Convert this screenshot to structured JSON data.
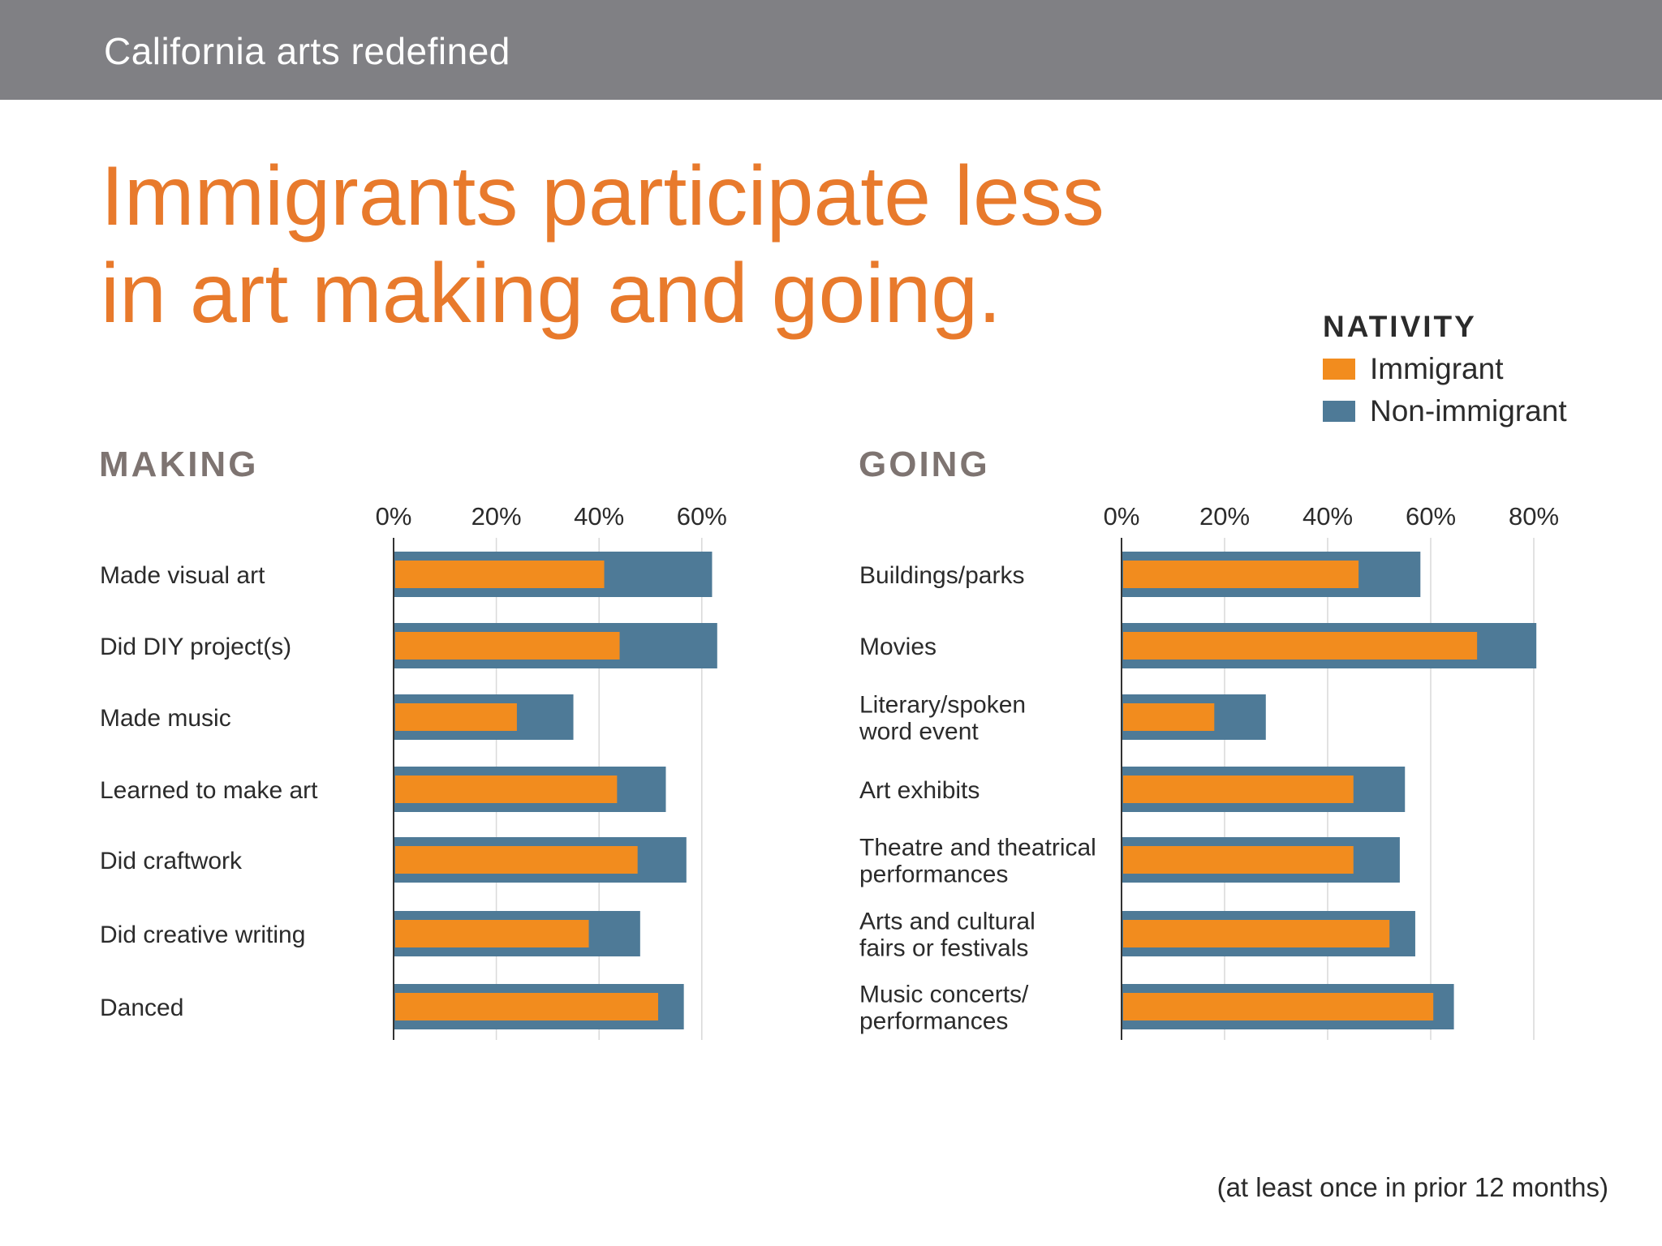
{
  "header": {
    "title": "California arts redefined"
  },
  "headline": {
    "line1": "Immigrants participate less",
    "line2": "in art making and going."
  },
  "legend": {
    "title": "NATIVITY",
    "items": [
      {
        "label": "Immigrant",
        "color": "#f28c1e"
      },
      {
        "label": "Non-immigrant",
        "color": "#4e7a97"
      }
    ]
  },
  "colors": {
    "immigrant": "#f28c1e",
    "non_immigrant": "#4e7a97",
    "axis": "#333333",
    "grid": "#d9d9d9"
  },
  "footnote": "(at least once in prior 12 months)",
  "chart_data": [
    {
      "type": "bar",
      "orientation": "horizontal",
      "title": "MAKING",
      "categories": [
        [
          "Made visual art"
        ],
        [
          "Did DIY project(s)"
        ],
        [
          "Made music"
        ],
        [
          "Learned  to make art"
        ],
        [
          "Did craftwork"
        ],
        [
          "Did creative writing"
        ],
        [
          "Danced"
        ]
      ],
      "series": [
        {
          "name": "Immigrant",
          "values": [
            41,
            44,
            24,
            43.5,
            47.5,
            38,
            51.5
          ]
        },
        {
          "name": "Non-immigrant",
          "values": [
            62,
            63,
            35,
            53,
            57,
            48,
            56.5
          ]
        }
      ],
      "xlim": [
        0,
        60
      ],
      "ticks": [
        "0%",
        "20%",
        "40%",
        "60%"
      ],
      "tick_values": [
        0,
        20,
        40,
        60
      ]
    },
    {
      "type": "bar",
      "orientation": "horizontal",
      "title": "GOING",
      "categories": [
        [
          "Buildings/parks"
        ],
        [
          "Movies"
        ],
        [
          "Literary/spoken",
          "word event"
        ],
        [
          "Art exhibits"
        ],
        [
          "Theatre and theatrical",
          "performances"
        ],
        [
          "Arts and cultural",
          "fairs or festivals"
        ],
        [
          "Music concerts/",
          "performances"
        ]
      ],
      "series": [
        {
          "name": "Immigrant",
          "values": [
            46,
            69,
            18,
            45,
            45,
            52,
            60.5
          ]
        },
        {
          "name": "Non-immigrant",
          "values": [
            58,
            80.5,
            28,
            55,
            54,
            57,
            64.5
          ]
        }
      ],
      "xlim": [
        0,
        80
      ],
      "ticks": [
        "0%",
        "20%",
        "40%",
        "60%",
        "80%"
      ],
      "tick_values": [
        0,
        20,
        40,
        60,
        80
      ]
    }
  ]
}
